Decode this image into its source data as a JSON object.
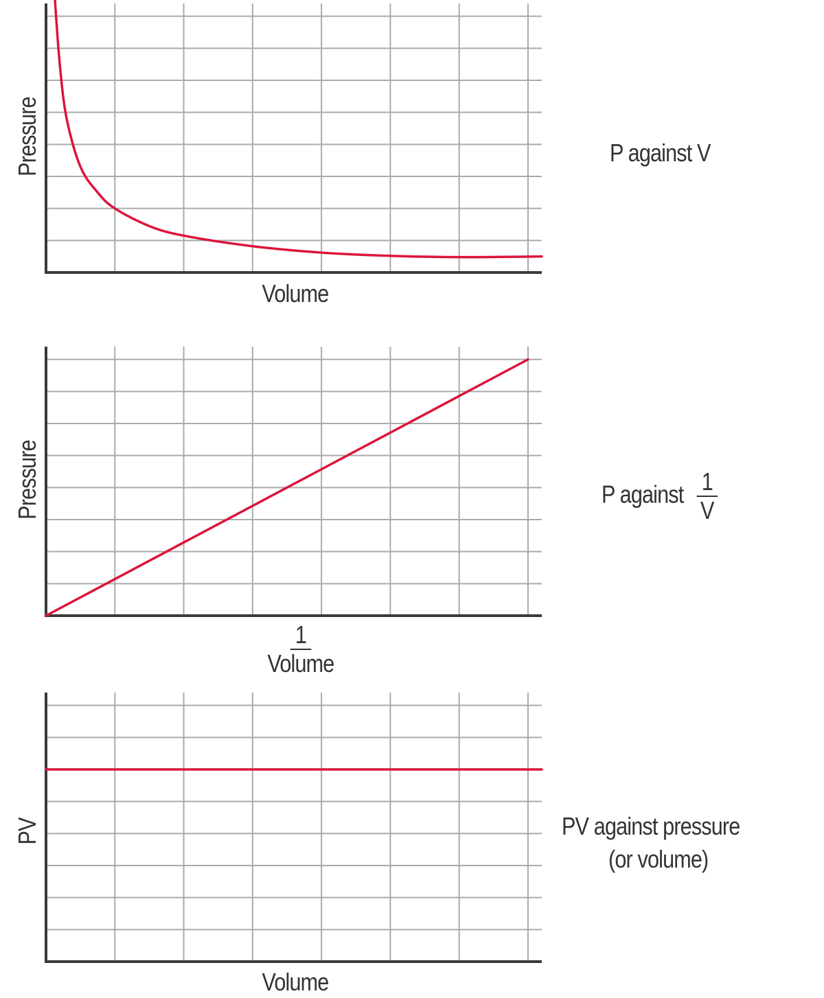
{
  "colors": {
    "curve": "#dc143c",
    "grid": "#aaaaaa",
    "axis": "#3a3a3a",
    "text": "#333333"
  },
  "chart_data": [
    {
      "type": "line",
      "xlabel": "Volume",
      "ylabel": "Pressure",
      "caption": "P against V",
      "xlim": [
        0,
        7.2
      ],
      "ylim": [
        0,
        8.4
      ],
      "grid": true,
      "x": [
        0.13,
        0.2,
        0.3,
        0.5,
        0.75,
        1,
        1.5,
        2,
        3,
        4,
        5,
        6,
        7.2
      ],
      "y": [
        8.5,
        6.5,
        4.8,
        3.3,
        2.5,
        2.0,
        1.45,
        1.15,
        0.82,
        0.62,
        0.52,
        0.48,
        0.5
      ]
    },
    {
      "type": "line",
      "xlabel": {
        "numerator": "1",
        "denominator": "Volume"
      },
      "ylabel": "Pressure",
      "caption": {
        "prefix": "P against",
        "numerator": "1",
        "denominator": "V"
      },
      "xlim": [
        0,
        7.2
      ],
      "ylim": [
        0,
        8.4
      ],
      "grid": true,
      "x": [
        0,
        7
      ],
      "y": [
        0,
        8
      ]
    },
    {
      "type": "line",
      "xlabel": "Volume",
      "ylabel": "PV",
      "caption": {
        "line1": "PV against pressure",
        "line2": "(or volume)"
      },
      "xlim": [
        0,
        7.2
      ],
      "ylim": [
        0,
        8.4
      ],
      "grid": true,
      "x": [
        0,
        7.2
      ],
      "y": [
        6,
        6
      ]
    }
  ]
}
